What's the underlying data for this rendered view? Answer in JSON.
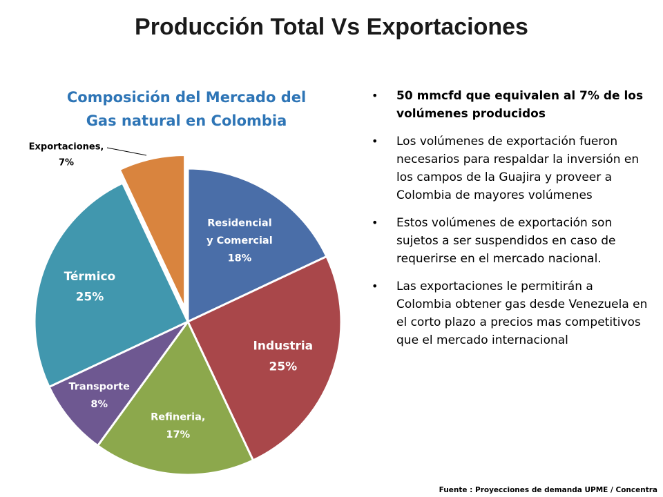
{
  "slide": {
    "title": "Producción Total Vs Exportaciones"
  },
  "chart_data": {
    "type": "pie",
    "title_line1": "Composición del Mercado del",
    "title_line2": "Gas natural en Colombia",
    "slices": [
      {
        "name": "Residencial y Comercial",
        "value": 18,
        "color": "#4A6EA8",
        "label_lines": [
          "Residencial",
          "y Comercial",
          "18%"
        ],
        "exploded": false
      },
      {
        "name": "Industria",
        "value": 25,
        "color": "#A9474A",
        "label_lines": [
          "Industria",
          "25%"
        ],
        "exploded": false
      },
      {
        "name": "Refineria",
        "value": 17,
        "color": "#8CA84C",
        "label_lines": [
          "Refineria,",
          "17%"
        ],
        "exploded": false
      },
      {
        "name": "Transporte",
        "value": 8,
        "color": "#6E5891",
        "label_lines": [
          "Transporte",
          "8%"
        ],
        "exploded": false
      },
      {
        "name": "Térmico",
        "value": 25,
        "color": "#4197AE",
        "label_lines": [
          "Térmico",
          "25%"
        ],
        "exploded": false
      },
      {
        "name": "Exportaciones",
        "value": 7,
        "color": "#D9843E",
        "label_lines": [
          "Exportaciones,",
          "7%"
        ],
        "exploded": true
      }
    ],
    "legend": "none",
    "units": "%"
  },
  "bullets": [
    {
      "text": "50 mmcfd que equivalen al 7% de los volúmenes producidos",
      "strong": true
    },
    {
      "text": "Los volúmenes de exportación fueron necesarios para respaldar la inversión en los campos de la Guajira y proveer a Colombia de mayores volúmenes",
      "strong": false
    },
    {
      "text": "Estos volúmenes de exportación son sujetos a ser suspendidos en caso de requerirse en el mercado nacional.",
      "strong": false
    },
    {
      "text": "Las exportaciones le permitirán a Colombia  obtener gas desde Venezuela en el corto plazo a precios mas competitivos que el mercado internacional",
      "strong": false
    }
  ],
  "bullet_glyph": "•",
  "source_note": "Fuente : Proyecciones de demanda UPME / Concentra"
}
